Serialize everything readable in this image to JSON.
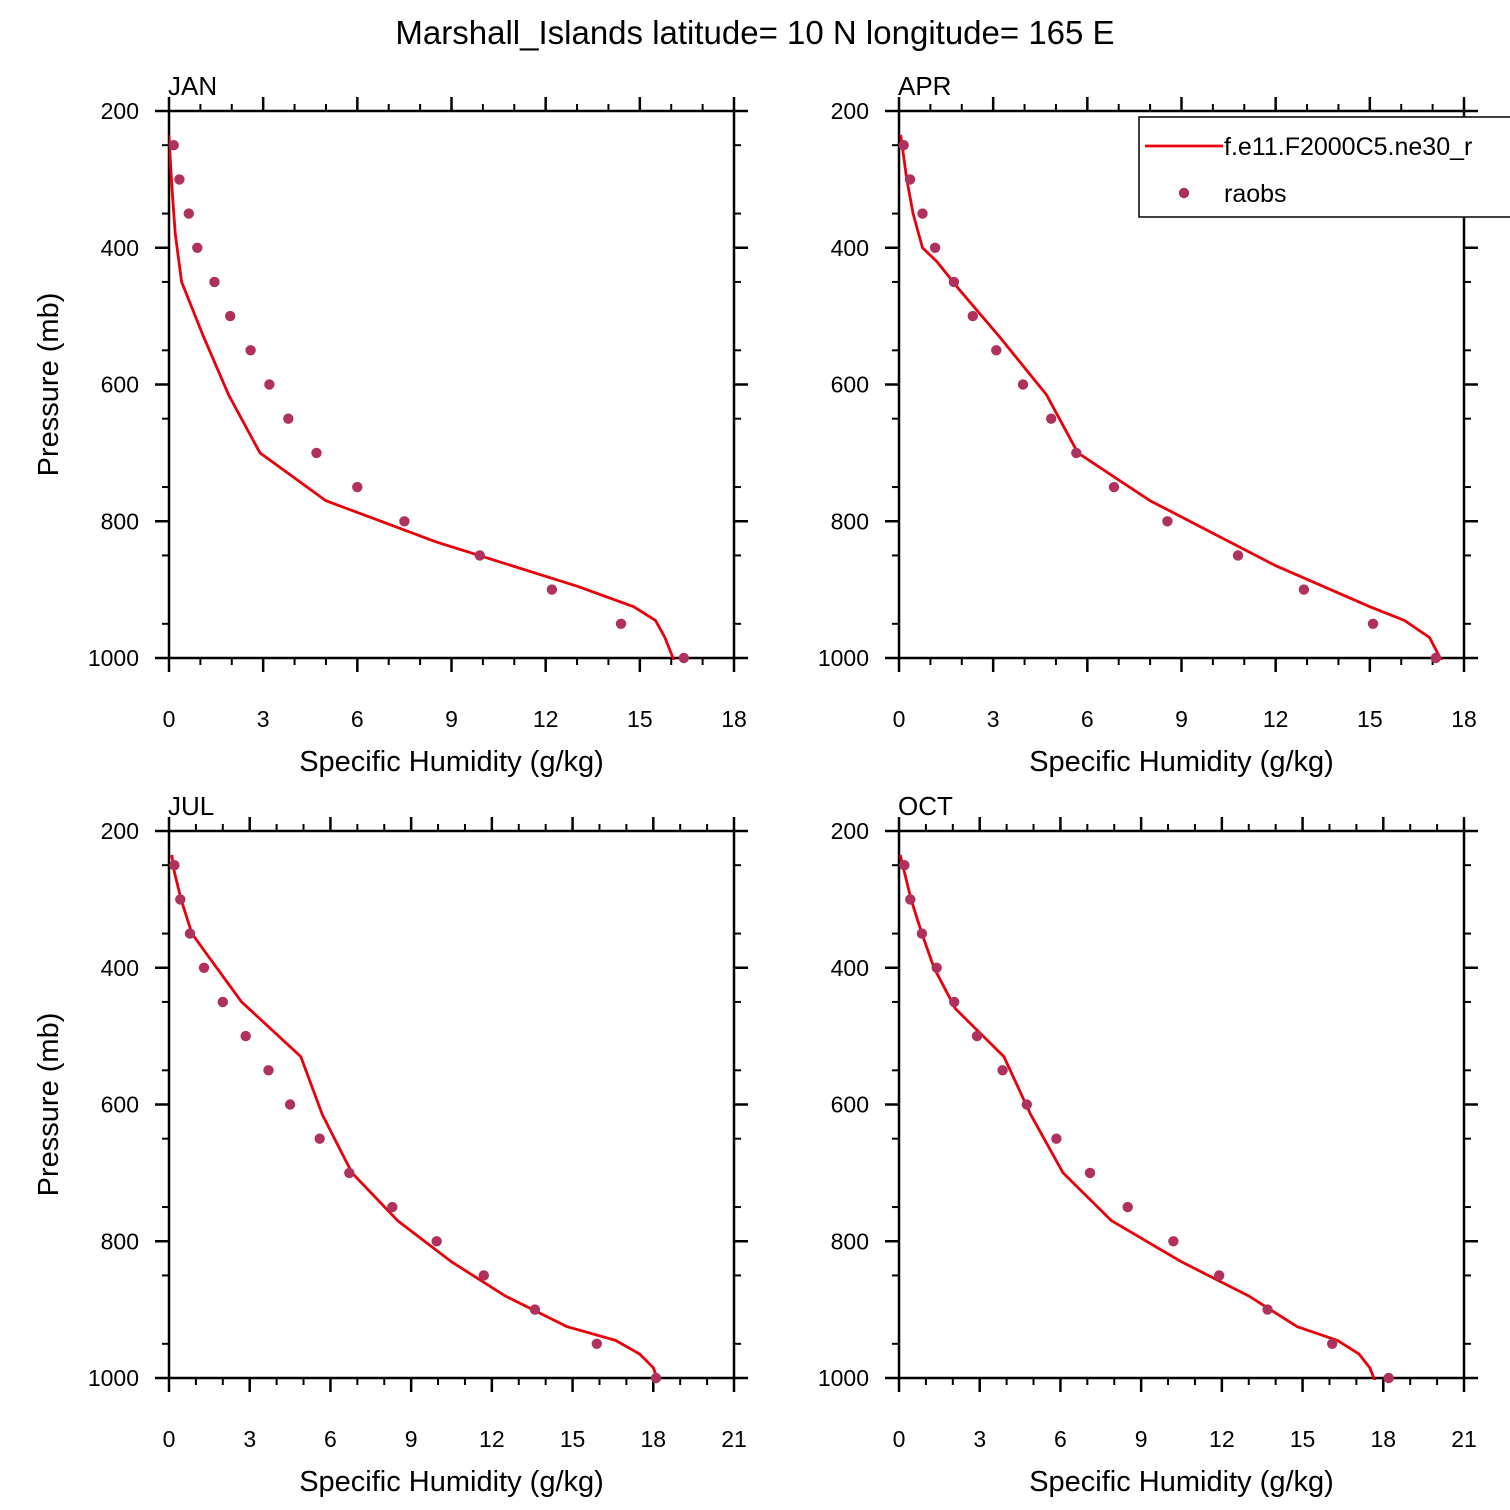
{
  "title": "Marshall_Islands  latitude= 10 N longitude= 165 E",
  "colors": {
    "model_line": "#e8000b",
    "obs_marker": "#b0305e",
    "axes": "#000000"
  },
  "legend": {
    "placement": "top-right of APR panel",
    "entries": [
      {
        "label": "f.e11.F2000C5.ne30_r",
        "style": "line"
      },
      {
        "label": "raobs",
        "style": "marker"
      }
    ]
  },
  "chart_data": [
    {
      "type": "line",
      "title": "JAN",
      "xlabel": "Specific Humidity (g/kg)",
      "ylabel": "Pressure (mb)",
      "xlim": [
        0,
        18
      ],
      "ylim": [
        200,
        1000
      ],
      "y_inverted": true,
      "xticks": [
        0,
        3,
        6,
        9,
        12,
        15,
        18
      ],
      "yticks": [
        200,
        400,
        600,
        800,
        1000
      ],
      "series": [
        {
          "name": "f.e11.F2000C5.ne30_r",
          "kind": "line",
          "x": [
            0.0,
            0.05,
            0.12,
            0.2,
            0.4,
            1.1,
            1.9,
            2.9,
            5.0,
            8.5,
            13.0,
            14.8,
            15.5,
            15.8,
            16.1
          ],
          "y": [
            235,
            280,
            330,
            380,
            450,
            530,
            615,
            700,
            770,
            830,
            895,
            925,
            945,
            970,
            1005
          ]
        },
        {
          "name": "raobs",
          "kind": "scatter",
          "x": [
            0.15,
            0.33,
            0.63,
            0.9,
            1.45,
            1.95,
            2.6,
            3.2,
            3.8,
            4.7,
            6.0,
            7.5,
            9.9,
            12.2,
            14.4,
            16.4
          ],
          "y": [
            250,
            300,
            350,
            400,
            450,
            500,
            550,
            600,
            650,
            700,
            750,
            800,
            850,
            900,
            950,
            1000
          ]
        }
      ]
    },
    {
      "type": "line",
      "title": "APR",
      "xlabel": "Specific Humidity (g/kg)",
      "ylabel": "",
      "xlim": [
        0,
        18
      ],
      "ylim": [
        200,
        1000
      ],
      "y_inverted": true,
      "xticks": [
        0,
        3,
        6,
        9,
        12,
        15,
        18
      ],
      "yticks": [
        200,
        400,
        600,
        800,
        1000
      ],
      "series": [
        {
          "name": "f.e11.F2000C5.ne30_r",
          "kind": "line",
          "x": [
            0.05,
            0.1,
            0.25,
            0.45,
            0.75,
            1.2,
            1.9,
            3.2,
            4.7,
            5.7,
            8.0,
            12.0,
            15.0,
            16.1,
            16.9,
            17.3
          ],
          "y": [
            235,
            250,
            300,
            350,
            400,
            420,
            460,
            530,
            615,
            700,
            770,
            865,
            925,
            945,
            970,
            1005
          ]
        },
        {
          "name": "raobs",
          "kind": "scatter",
          "x": [
            0.15,
            0.35,
            0.75,
            1.15,
            1.75,
            2.35,
            3.1,
            3.95,
            4.85,
            5.65,
            6.85,
            8.55,
            10.8,
            12.9,
            15.1,
            17.1
          ],
          "y": [
            250,
            300,
            350,
            400,
            450,
            500,
            550,
            600,
            650,
            700,
            750,
            800,
            850,
            900,
            950,
            1000
          ]
        }
      ]
    },
    {
      "type": "line",
      "title": "JUL",
      "xlabel": "Specific Humidity (g/kg)",
      "ylabel": "Pressure (mb)",
      "xlim": [
        0,
        21
      ],
      "ylim": [
        200,
        1000
      ],
      "y_inverted": true,
      "xticks": [
        0,
        3,
        6,
        9,
        12,
        15,
        18,
        21
      ],
      "yticks": [
        200,
        400,
        600,
        800,
        1000
      ],
      "series": [
        {
          "name": "f.e11.F2000C5.ne30_r",
          "kind": "line",
          "x": [
            0.1,
            0.2,
            0.45,
            0.85,
            1.4,
            2.7,
            4.9,
            5.7,
            6.8,
            8.5,
            10.5,
            12.5,
            14.8,
            16.6,
            17.5,
            18.0,
            18.15
          ],
          "y": [
            235,
            260,
            300,
            350,
            380,
            450,
            530,
            615,
            700,
            770,
            830,
            880,
            925,
            945,
            965,
            985,
            1000
          ]
        },
        {
          "name": "raobs",
          "kind": "scatter",
          "x": [
            0.2,
            0.42,
            0.78,
            1.3,
            2.0,
            2.85,
            3.7,
            4.5,
            5.6,
            6.7,
            8.3,
            9.95,
            11.7,
            13.6,
            15.9,
            18.1
          ],
          "y": [
            250,
            300,
            350,
            400,
            450,
            500,
            550,
            600,
            650,
            700,
            750,
            800,
            850,
            900,
            950,
            1000
          ]
        }
      ]
    },
    {
      "type": "line",
      "title": "OCT",
      "xlabel": "Specific Humidity (g/kg)",
      "ylabel": "",
      "xlim": [
        0,
        21
      ],
      "ylim": [
        200,
        1000
      ],
      "y_inverted": true,
      "xticks": [
        0,
        3,
        6,
        9,
        12,
        15,
        18,
        21
      ],
      "yticks": [
        200,
        400,
        600,
        800,
        1000
      ],
      "series": [
        {
          "name": "f.e11.F2000C5.ne30_r",
          "kind": "line",
          "x": [
            0.05,
            0.2,
            0.45,
            0.85,
            1.3,
            2.1,
            3.9,
            4.9,
            6.1,
            7.9,
            10.5,
            13.0,
            14.8,
            16.3,
            17.1,
            17.5,
            17.7
          ],
          "y": [
            235,
            260,
            300,
            350,
            400,
            460,
            530,
            615,
            700,
            770,
            830,
            880,
            925,
            945,
            965,
            985,
            1005
          ]
        },
        {
          "name": "raobs",
          "kind": "scatter",
          "x": [
            0.2,
            0.42,
            0.85,
            1.4,
            2.05,
            2.9,
            3.85,
            4.75,
            5.85,
            7.1,
            8.5,
            10.2,
            11.9,
            13.7,
            16.1,
            18.2
          ],
          "y": [
            250,
            300,
            350,
            400,
            450,
            500,
            550,
            600,
            650,
            700,
            750,
            800,
            850,
            900,
            950,
            1000
          ]
        }
      ]
    }
  ]
}
